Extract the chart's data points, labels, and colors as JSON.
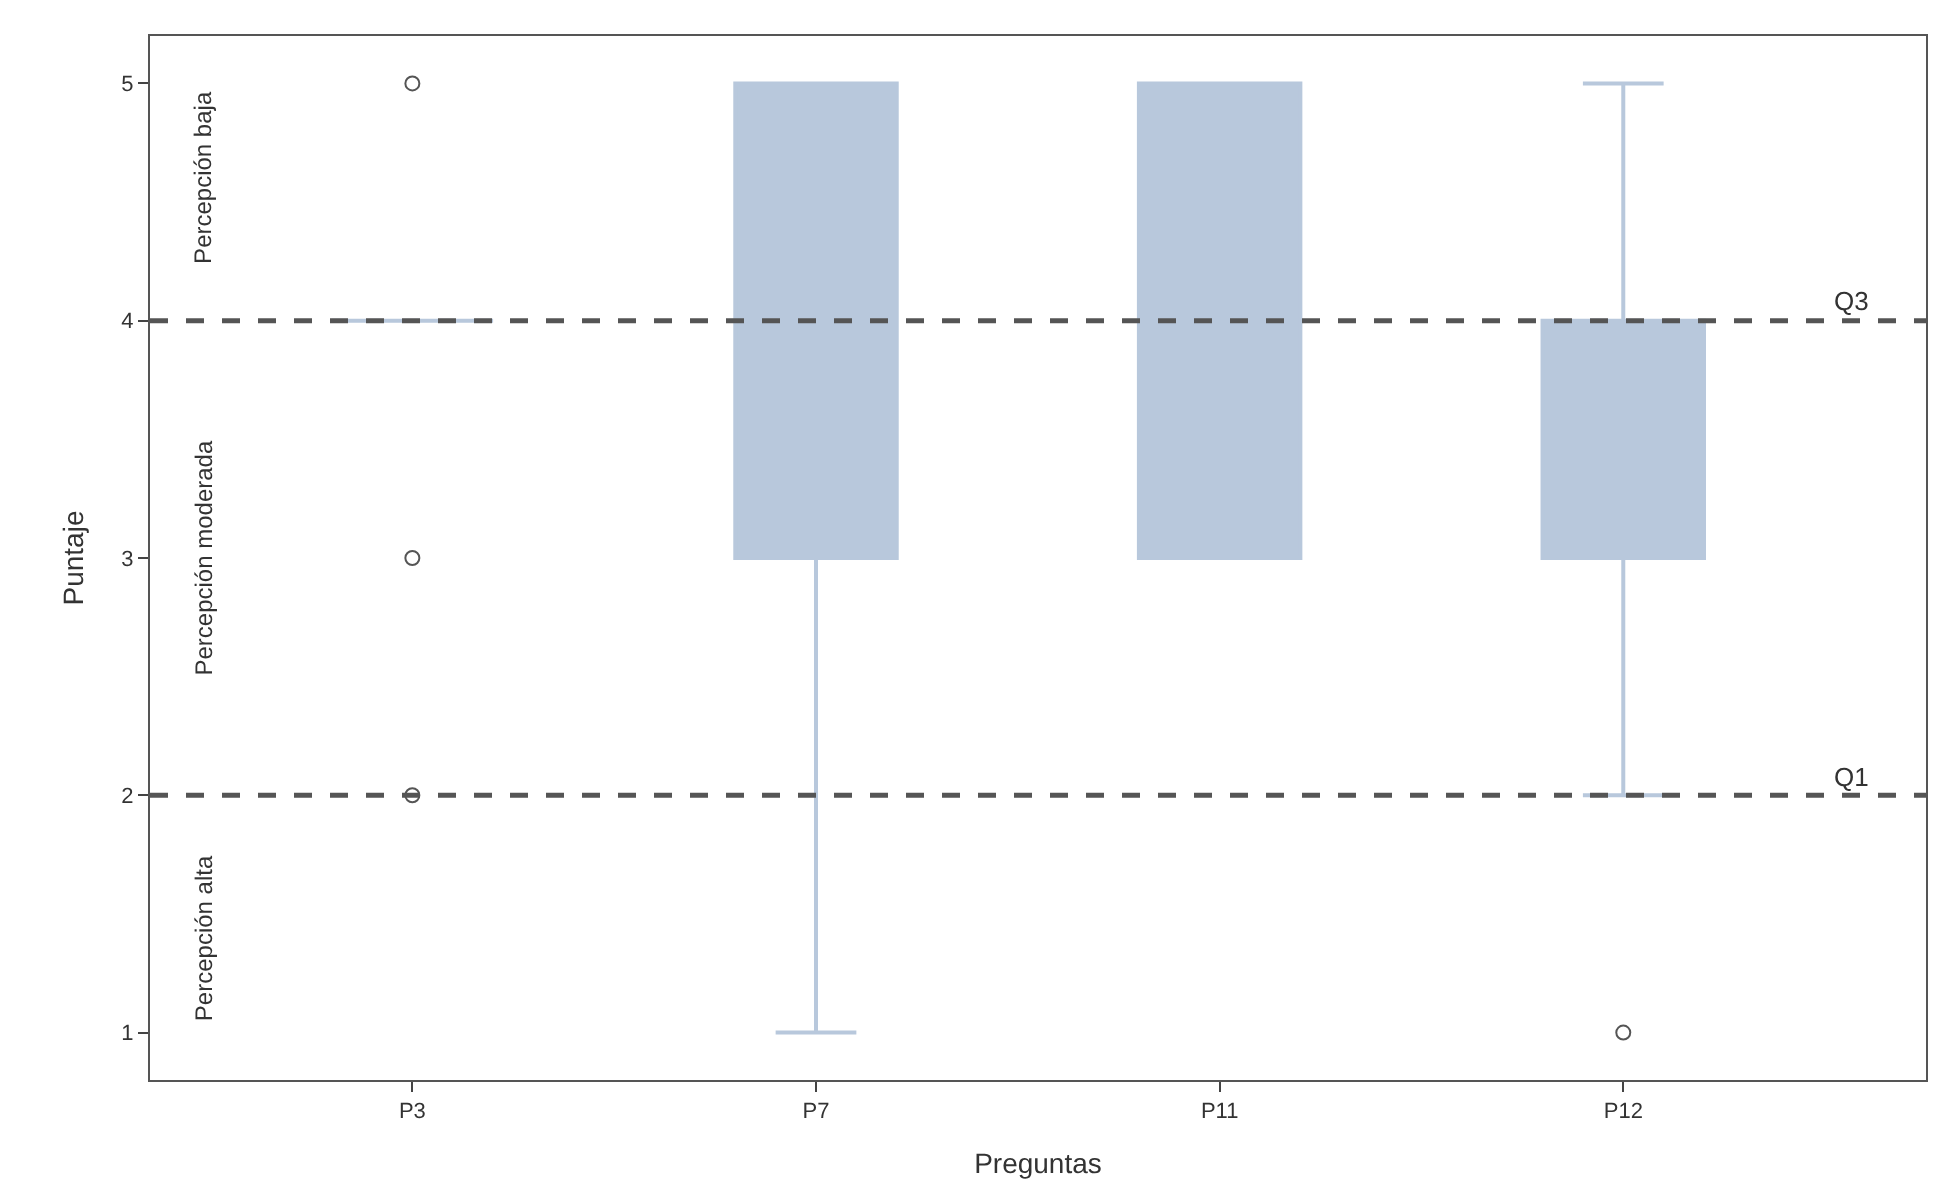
{
  "chart_data": {
    "type": "box",
    "xlabel": "Preguntas",
    "ylabel": "Puntaje",
    "categories": [
      "P3",
      "P7",
      "P11",
      "P12"
    ],
    "series": [
      {
        "color": "#b8c8dc",
        "boxes": [
          {
            "low": 4,
            "q1": 4,
            "median": 4,
            "q3": 4,
            "high": 4,
            "outliers": [
              5,
              3,
              2
            ]
          },
          {
            "low": 1,
            "q1": 3,
            "median": 5,
            "q3": 5,
            "high": 5
          },
          {
            "low": 3,
            "q1": 3,
            "median": 5,
            "q3": 5,
            "high": 5
          },
          {
            "low": 2,
            "q1": 3,
            "median": 4,
            "q3": 4,
            "high": 5,
            "outliers": [
              1
            ]
          }
        ]
      }
    ],
    "ylim": [
      0.8,
      5.2
    ],
    "yticks": [
      1,
      2,
      3,
      4,
      5
    ],
    "ref_lines": [
      {
        "axis": "y",
        "value": 4,
        "label": "Q3",
        "color": "#555555",
        "line_style": "dashed"
      },
      {
        "axis": "y",
        "value": 2,
        "label": "Q1",
        "color": "#555555",
        "line_style": "dashed"
      }
    ],
    "annotations": [
      "Percepción baja",
      "Percepción moderada",
      "Percepción alta"
    ]
  }
}
